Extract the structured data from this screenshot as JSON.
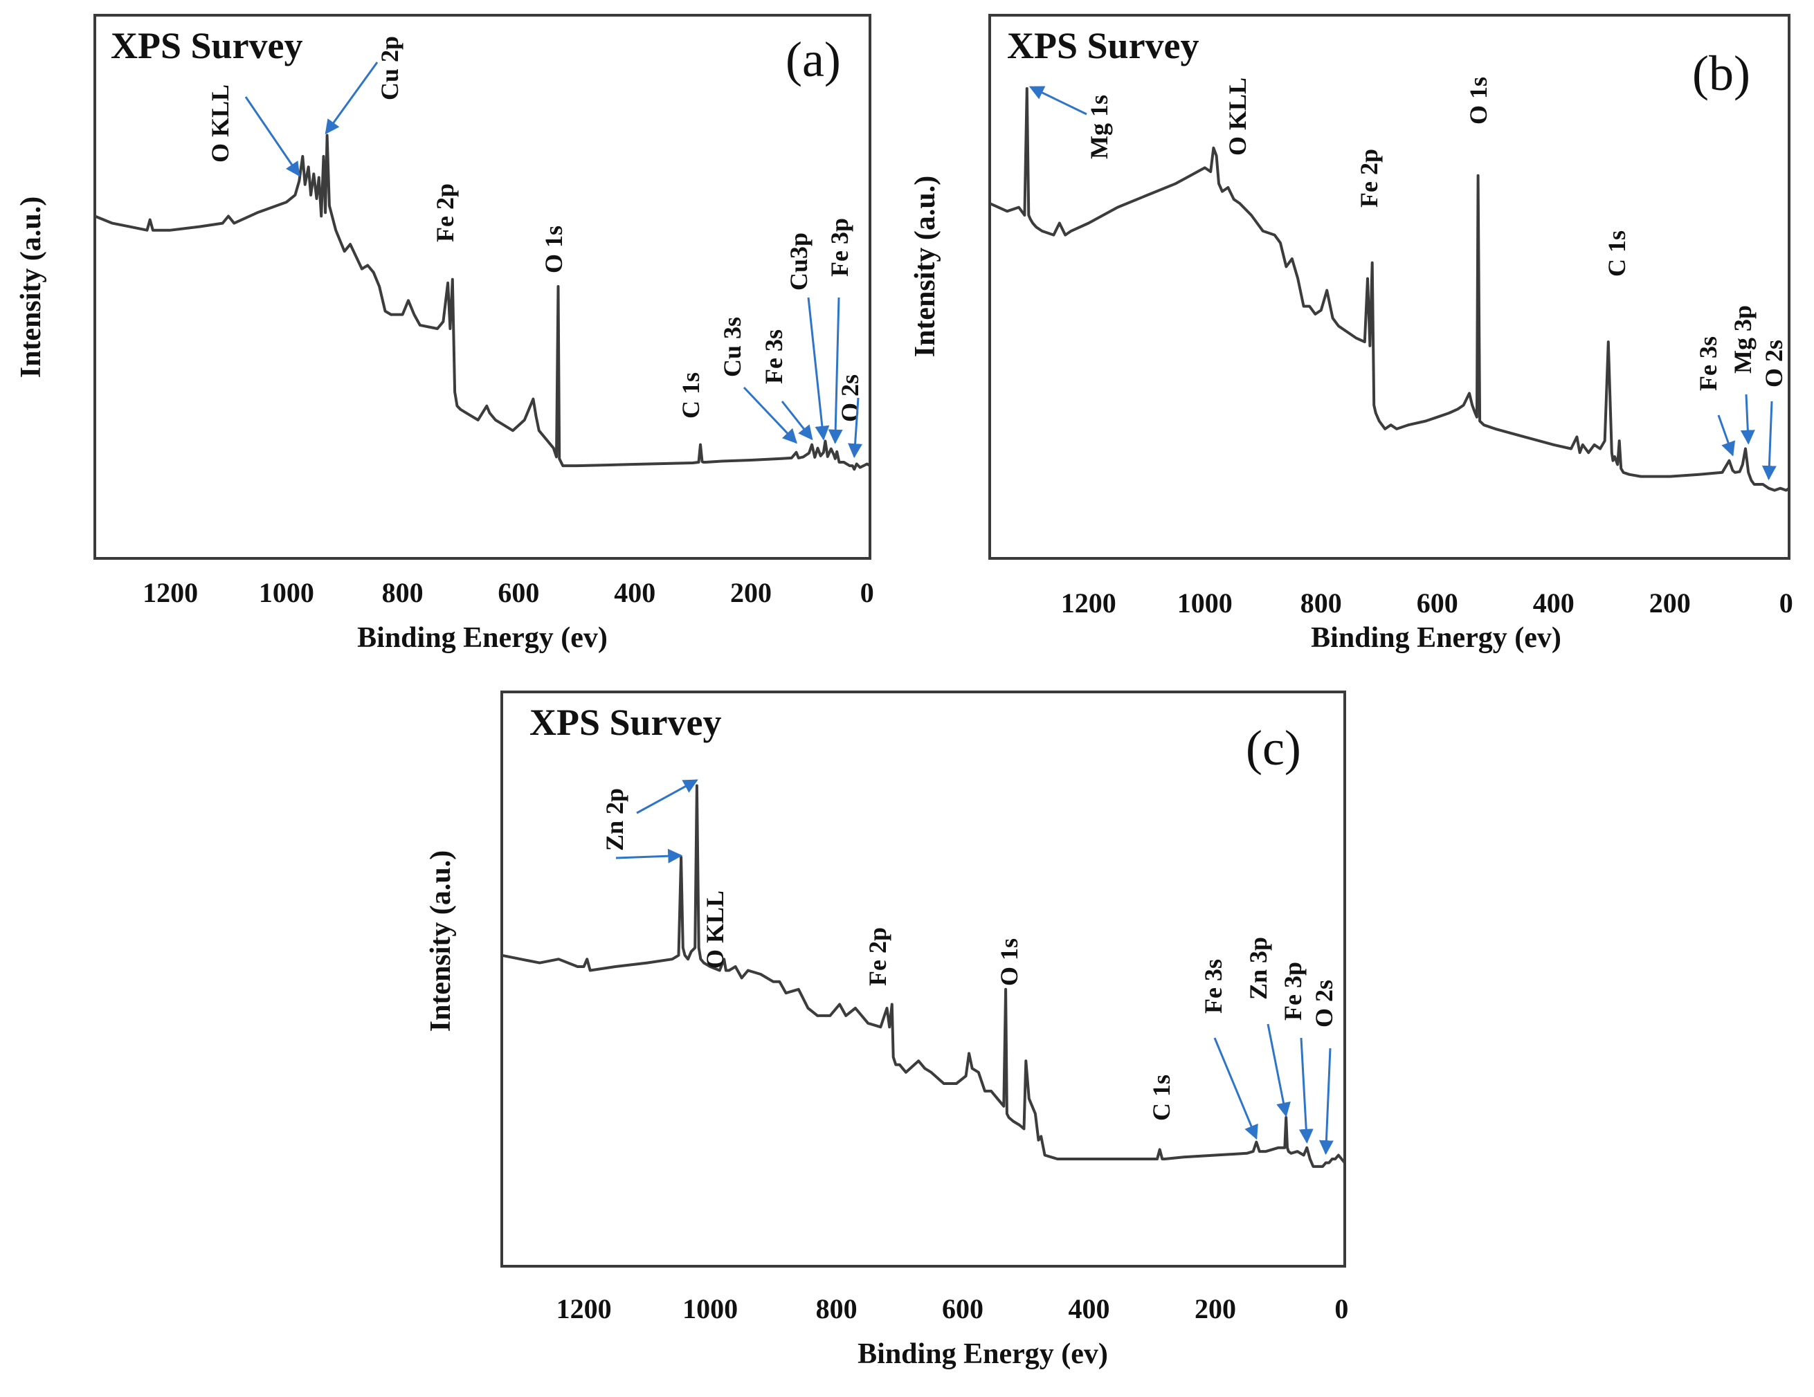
{
  "chart_data": [
    {
      "id": "a",
      "type": "line",
      "title": "XPS Survey",
      "panel_label": "(a)",
      "xlabel": "Binding Energy (ev)",
      "ylabel": "Intensity (a.u.)",
      "xlim": [
        1330,
        -5
      ],
      "ylim": [
        0,
        100
      ],
      "xticks": [
        1200,
        1000,
        800,
        600,
        400,
        200,
        0
      ],
      "arrow_color": "#2e75c9",
      "line_color": "#3c3c3c",
      "series": [
        {
          "name": "spectrum",
          "x": [
            1330,
            1300,
            1270,
            1240,
            1235,
            1230,
            1200,
            1150,
            1110,
            1100,
            1090,
            1050,
            1000,
            985,
            978,
            972,
            968,
            962,
            958,
            953,
            948,
            944,
            940,
            936,
            933,
            930,
            926,
            915,
            900,
            890,
            870,
            860,
            850,
            840,
            830,
            820,
            800,
            790,
            780,
            770,
            740,
            730,
            722,
            718,
            714,
            710,
            706,
            700,
            690,
            670,
            655,
            650,
            640,
            630,
            610,
            590,
            575,
            570,
            565,
            560,
            550,
            540,
            535,
            532,
            530,
            527,
            524,
            520,
            515,
            500,
            450,
            400,
            350,
            300,
            290,
            287,
            284,
            282,
            278,
            250,
            200,
            150,
            130,
            122,
            118,
            110,
            100,
            95,
            90,
            85,
            80,
            75,
            72,
            68,
            62,
            57,
            55,
            52,
            48,
            40,
            30,
            25,
            22,
            18,
            12,
            6,
            0,
            -5
          ],
          "y": [
            70,
            68,
            67,
            66,
            69,
            66,
            66,
            67,
            68,
            70,
            68,
            71,
            74,
            76,
            80,
            87,
            79,
            84,
            76,
            82,
            75,
            81,
            70,
            87,
            71,
            93,
            73,
            66,
            60,
            62,
            55,
            56,
            54,
            50,
            43,
            42,
            42,
            46,
            42,
            39,
            38,
            40,
            51,
            38,
            52,
            20,
            16,
            15,
            14,
            12,
            16,
            14,
            12,
            11,
            9,
            12,
            18,
            13,
            9,
            8,
            6,
            4,
            1.5,
            50,
            1,
            0,
            -1,
            -1,
            -1,
            -1,
            -0.8,
            -0.6,
            -0.4,
            -0.2,
            0,
            5,
            0.2,
            0,
            0,
            0.3,
            0.6,
            1.0,
            1.2,
            2.8,
            1.2,
            1.5,
            2.6,
            5,
            1.4,
            4,
            1.8,
            2.8,
            6,
            1.6,
            3.8,
            2,
            1,
            3,
            0,
            0,
            -1,
            -1,
            -2,
            -0.5,
            -1.5,
            -1,
            -0.5,
            -1
          ]
        }
      ],
      "annotations": [
        {
          "text": "O KLL",
          "x": 978,
          "y": 80
        },
        {
          "text": "Cu 2p",
          "x": 932,
          "y": 92
        },
        {
          "text": "Fe 2p",
          "x": 712,
          "y": 58
        },
        {
          "text": "O 1s",
          "x": 530,
          "y": 52
        },
        {
          "text": "C 1s",
          "x": 284,
          "y": 7
        },
        {
          "text": "Cu 3s",
          "x": 122,
          "y": 4
        },
        {
          "text": "Fe 3s",
          "x": 95,
          "y": 5
        },
        {
          "text": "Cu3p",
          "x": 75,
          "y": 5
        },
        {
          "text": "Fe 3p",
          "x": 55,
          "y": 4
        },
        {
          "text": "O 2s",
          "x": 22,
          "y": 0
        }
      ]
    },
    {
      "id": "b",
      "type": "line",
      "title": "XPS Survey",
      "panel_label": "(b)",
      "xlabel": "Binding Energy (ev)",
      "ylabel": "Intensity (a.u.)",
      "xlim": [
        1370,
        -5
      ],
      "ylim": [
        0,
        100
      ],
      "xticks": [
        1200,
        1000,
        800,
        600,
        400,
        200,
        0
      ],
      "arrow_color": "#2e75c9",
      "line_color": "#3c3c3c",
      "series": [
        {
          "name": "spectrum",
          "x": [
            1370,
            1340,
            1320,
            1310,
            1306,
            1303,
            1300,
            1296,
            1290,
            1280,
            1260,
            1250,
            1240,
            1230,
            1200,
            1150,
            1100,
            1050,
            1000,
            990,
            985,
            980,
            976,
            970,
            960,
            950,
            940,
            920,
            900,
            880,
            870,
            860,
            850,
            840,
            830,
            820,
            810,
            800,
            790,
            780,
            770,
            750,
            740,
            725,
            720,
            716,
            712,
            709,
            706,
            700,
            690,
            680,
            670,
            650,
            620,
            600,
            580,
            565,
            555,
            545,
            540,
            535,
            532,
            530,
            527,
            520,
            500,
            450,
            400,
            370,
            360,
            355,
            350,
            345,
            340,
            330,
            320,
            312,
            306,
            300,
            298,
            295,
            290,
            287,
            284,
            280,
            270,
            250,
            200,
            150,
            110,
            98,
            92,
            88,
            80,
            75,
            70,
            65,
            60,
            55,
            50,
            45,
            40,
            30,
            20,
            10,
            0,
            -5
          ],
          "y": [
            71,
            69,
            70,
            68,
            100,
            68,
            67,
            66,
            65,
            64,
            63,
            66,
            63,
            64,
            66,
            70,
            73,
            76,
            80,
            79,
            85,
            83,
            76,
            74,
            75,
            72,
            71,
            68,
            64,
            63,
            61,
            55,
            57,
            52,
            45,
            45,
            43,
            44,
            49,
            42,
            40,
            38,
            37,
            36,
            52,
            35,
            56,
            20,
            18,
            16,
            14,
            15,
            14,
            15,
            16,
            17,
            18,
            19,
            20,
            23,
            20,
            18,
            17,
            78,
            16,
            15,
            14,
            12,
            10,
            9,
            12,
            8,
            10,
            9,
            8,
            10,
            9,
            11,
            36,
            8,
            6,
            7,
            5,
            11,
            4,
            3,
            2.5,
            2,
            2,
            2.5,
            3,
            6,
            3.5,
            3,
            3.2,
            5,
            9,
            3,
            1,
            0,
            0,
            0,
            0,
            -1,
            -1.5,
            -1,
            -1.5,
            -1
          ]
        }
      ],
      "annotations": [
        {
          "text": "Mg 1s",
          "x": 1300,
          "y": 99
        },
        {
          "text": "O KLL",
          "x": 985,
          "y": 84
        },
        {
          "text": "Fe 2p",
          "x": 712,
          "y": 58
        },
        {
          "text": "O 1s",
          "x": 530,
          "y": 80
        },
        {
          "text": "C 1s",
          "x": 306,
          "y": 38
        },
        {
          "text": "Fe 3s",
          "x": 92,
          "y": 6
        },
        {
          "text": "Mg 3p",
          "x": 65,
          "y": 9
        },
        {
          "text": "O 2s",
          "x": 30,
          "y": 0
        }
      ]
    },
    {
      "id": "c",
      "type": "line",
      "title": "XPS Survey",
      "panel_label": "(c)",
      "xlabel": "Binding Energy (ev)",
      "ylabel": "Intensity (a.u.)",
      "xlim": [
        1330,
        -5
      ],
      "ylim": [
        0,
        100
      ],
      "xticks": [
        1200,
        1000,
        800,
        600,
        400,
        200,
        0
      ],
      "arrow_color": "#2e75c9",
      "line_color": "#3c3c3c",
      "series": [
        {
          "name": "spectrum",
          "x": [
            1330,
            1300,
            1270,
            1240,
            1210,
            1200,
            1195,
            1190,
            1150,
            1100,
            1060,
            1050,
            1046,
            1043,
            1040,
            1035,
            1030,
            1024,
            1021,
            1018,
            1015,
            1010,
            1000,
            985,
            978,
            975,
            970,
            960,
            950,
            940,
            920,
            900,
            890,
            880,
            860,
            845,
            830,
            810,
            795,
            785,
            770,
            750,
            730,
            720,
            716,
            712,
            710,
            706,
            700,
            690,
            670,
            660,
            650,
            630,
            610,
            595,
            590,
            585,
            575,
            565,
            555,
            545,
            535,
            532,
            530,
            527,
            520,
            510,
            503,
            500,
            495,
            485,
            480,
            476,
            470,
            450,
            400,
            350,
            300,
            292,
            288,
            284,
            280,
            250,
            200,
            150,
            140,
            135,
            130,
            120,
            100,
            90,
            88,
            86,
            84,
            80,
            70,
            60,
            55,
            50,
            45,
            40,
            35,
            30,
            25,
            20,
            15,
            10,
            5,
            0,
            -5
          ],
          "y": [
            54,
            53,
            52,
            53,
            51,
            51,
            53,
            50,
            51,
            52,
            53,
            54,
            80,
            56,
            54,
            53,
            55,
            56,
            99,
            56,
            53,
            52,
            51,
            50,
            53,
            50,
            50,
            51,
            48,
            50,
            49,
            47,
            47,
            44,
            45,
            40,
            38,
            38,
            41,
            38,
            40,
            36,
            35,
            40,
            35,
            41,
            27,
            25,
            25,
            23,
            26,
            24,
            23,
            20,
            20,
            22,
            28,
            24,
            23,
            18,
            18,
            16,
            14,
            45,
            12,
            11,
            10,
            9,
            8,
            26,
            16,
            12,
            5,
            6,
            1,
            0,
            0,
            0,
            0,
            0,
            2.5,
            0,
            0,
            0.5,
            1,
            1.5,
            2,
            4.5,
            2,
            2,
            3,
            3,
            11,
            3,
            2,
            1.5,
            2,
            1,
            3,
            0,
            -2,
            -2,
            -2,
            -2,
            -1,
            -1,
            0,
            0,
            1,
            0,
            -1
          ]
        }
      ],
      "annotations": [
        {
          "text": "Zn 2p",
          "x": 1021,
          "y": 99
        },
        {
          "text": "Zn 2p",
          "x": 1046,
          "y": 79
        },
        {
          "text": "O KLL",
          "x": 975,
          "y": 54
        },
        {
          "text": "Fe 2p",
          "x": 712,
          "y": 42
        },
        {
          "text": "O 1s",
          "x": 530,
          "y": 46
        },
        {
          "text": "C 1s",
          "x": 284,
          "y": 3
        },
        {
          "text": "Fe 3s",
          "x": 135,
          "y": 4
        },
        {
          "text": "Zn 3p",
          "x": 88,
          "y": 10
        },
        {
          "text": "Fe 3p",
          "x": 55,
          "y": 3
        },
        {
          "text": "O 2s",
          "x": 25,
          "y": 0
        }
      ]
    }
  ]
}
